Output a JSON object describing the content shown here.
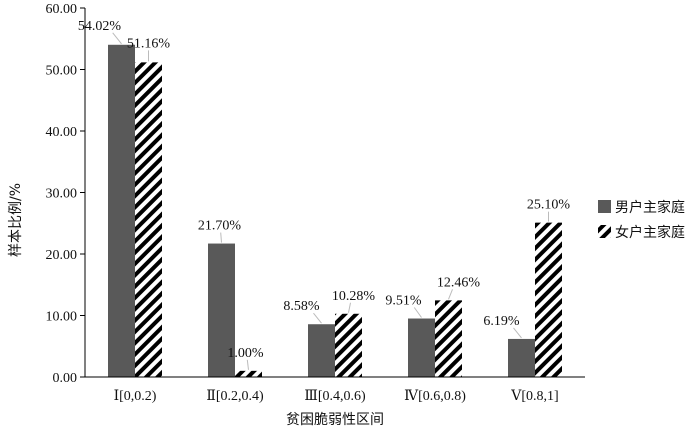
{
  "chart_data": {
    "type": "bar",
    "title": "",
    "xlabel": "贫困脆弱性区间",
    "ylabel": "样本比例/%",
    "ylim": [
      0,
      60
    ],
    "yticks": [
      "0.00",
      "10.00",
      "20.00",
      "30.00",
      "40.00",
      "50.00",
      "60.00"
    ],
    "categories": [
      "Ⅰ[0,0.2)",
      "Ⅱ[0.2,0.4)",
      "Ⅲ[0.4,0.6)",
      "Ⅳ[0.6,0.8)",
      "Ⅴ[0.8,1]"
    ],
    "series": [
      {
        "name": "男户主家庭",
        "values": [
          54.02,
          21.7,
          8.58,
          9.51,
          6.19
        ],
        "labels": [
          "54.02%",
          "21.70%",
          "8.58%",
          "9.51%",
          "6.19%"
        ],
        "color": "#595959",
        "pattern": "solid"
      },
      {
        "name": "女户主家庭",
        "values": [
          51.16,
          1.0,
          10.28,
          12.46,
          25.1
        ],
        "labels": [
          "51.16%",
          "1.00%",
          "10.28%",
          "12.46%",
          "25.10%"
        ],
        "color": "#000000",
        "pattern": "diagonal-hatch"
      }
    ],
    "legend_position": "right"
  }
}
